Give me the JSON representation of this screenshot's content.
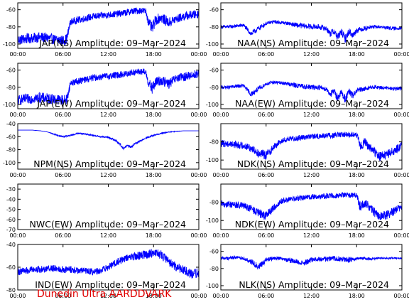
{
  "figure_footer": "Dunedin Ultra AARDDVARK",
  "colors": {
    "trace": "#0000ff",
    "frame": "#000000",
    "footer": "#e00000"
  },
  "chart_data": [
    {
      "type": "line",
      "title": "JAP(NS) Amplitude: 09–Mar–2024",
      "ylim": [
        -105,
        -52
      ],
      "yticks": [
        -100,
        -80,
        -60
      ],
      "ytick_labels": [
        "-100",
        "-80",
        "-60"
      ],
      "xlim": [
        0,
        24
      ],
      "xticks": [
        0,
        6,
        12,
        18,
        24
      ],
      "xtick_labels": [
        "00:00",
        "06:00",
        "12:00",
        "18:00",
        "00:00"
      ],
      "series": [
        {
          "x": [
            0,
            1,
            2,
            3,
            4,
            5,
            6,
            6.5,
            7,
            8,
            9,
            10,
            11,
            12,
            13,
            14,
            15,
            16,
            16.5,
            17,
            17.3,
            17.8,
            18.3,
            19,
            20,
            21,
            22,
            23,
            24
          ],
          "y": [
            -95,
            -94,
            -93,
            -92,
            -93,
            -95,
            -96,
            -94,
            -74,
            -72,
            -70,
            -68,
            -67,
            -66,
            -65,
            -64,
            -62,
            -61,
            -61,
            -62,
            -74,
            -82,
            -72,
            -69,
            -75,
            -71,
            -68,
            -66,
            -65
          ],
          "band": [
            6,
            6,
            6,
            6,
            6,
            6,
            6,
            6,
            4,
            4,
            4,
            4,
            4,
            4,
            4,
            4,
            4,
            4,
            4,
            4,
            5,
            7,
            6,
            6,
            6,
            5,
            5,
            5,
            5
          ]
        }
      ]
    },
    {
      "type": "line",
      "title": "NAA(NS) Amplitude: 09–Mar–2024",
      "ylim": [
        -105,
        -52
      ],
      "yticks": [
        -100,
        -80,
        -60
      ],
      "ytick_labels": [
        "-100",
        "-80",
        "-60"
      ],
      "xlim": [
        0,
        24
      ],
      "xticks": [
        0,
        6,
        12,
        18,
        24
      ],
      "xtick_labels": [
        "00:00",
        "06:00",
        "12:00",
        "18:00",
        "00:00"
      ],
      "series": [
        {
          "x": [
            0,
            1,
            2,
            3,
            4,
            5,
            6,
            7,
            8,
            9,
            10,
            11,
            12,
            13,
            14,
            14.5,
            15,
            15.5,
            16,
            16.5,
            17,
            17.5,
            18,
            19,
            20,
            21,
            22,
            23,
            24
          ],
          "y": [
            -80,
            -80,
            -79,
            -78,
            -88,
            -82,
            -76,
            -74,
            -75,
            -76,
            -78,
            -79,
            -80,
            -80,
            -82,
            -88,
            -85,
            -92,
            -86,
            -94,
            -85,
            -90,
            -84,
            -82,
            -80,
            -80,
            -81,
            -82,
            -81
          ],
          "band": [
            2,
            2,
            2,
            2,
            3,
            3,
            2,
            2,
            2,
            2,
            3,
            3,
            3,
            3,
            3,
            4,
            4,
            5,
            4,
            5,
            4,
            4,
            3,
            3,
            2,
            2,
            2,
            2,
            2
          ]
        }
      ]
    },
    {
      "type": "line",
      "title": "JAP(EW) Amplitude: 09–Mar–2024",
      "ylim": [
        -105,
        -52
      ],
      "yticks": [
        -100,
        -80,
        -60
      ],
      "ytick_labels": [
        "-100",
        "-80",
        "-60"
      ],
      "xlim": [
        0,
        24
      ],
      "xticks": [
        0,
        6,
        12,
        18,
        24
      ],
      "xtick_labels": [
        "00:00",
        "06:00",
        "12:00",
        "18:00",
        "00:00"
      ],
      "series": [
        {
          "x": [
            0,
            1,
            2,
            3,
            4,
            5,
            6,
            6.5,
            7,
            8,
            9,
            10,
            11,
            12,
            13,
            14,
            15,
            16,
            16.5,
            17,
            17.3,
            17.8,
            18.3,
            19,
            20,
            21,
            22,
            23,
            24
          ],
          "y": [
            -95,
            -94,
            -93,
            -92,
            -93,
            -94,
            -95,
            -94,
            -75,
            -73,
            -71,
            -69,
            -68,
            -67,
            -66,
            -65,
            -63,
            -62,
            -62,
            -63,
            -74,
            -82,
            -74,
            -72,
            -76,
            -70,
            -68,
            -66,
            -64
          ],
          "band": [
            6,
            6,
            6,
            6,
            6,
            6,
            6,
            6,
            4,
            4,
            4,
            4,
            4,
            4,
            4,
            4,
            4,
            4,
            4,
            4,
            5,
            7,
            6,
            6,
            6,
            5,
            5,
            5,
            5
          ]
        }
      ]
    },
    {
      "type": "line",
      "title": "NAA(EW) Amplitude: 09–Mar–2024",
      "ylim": [
        -105,
        -52
      ],
      "yticks": [
        -100,
        -80,
        -60
      ],
      "ytick_labels": [
        "-100",
        "-80",
        "-60"
      ],
      "xlim": [
        0,
        24
      ],
      "xticks": [
        0,
        6,
        12,
        18,
        24
      ],
      "xtick_labels": [
        "00:00",
        "06:00",
        "12:00",
        "18:00",
        "00:00"
      ],
      "series": [
        {
          "x": [
            0,
            1,
            2,
            3,
            4,
            5,
            6,
            7,
            8,
            9,
            10,
            11,
            12,
            13,
            14,
            14.5,
            15,
            15.5,
            16,
            16.5,
            17,
            17.5,
            18,
            19,
            20,
            21,
            22,
            23,
            24
          ],
          "y": [
            -80,
            -80,
            -79,
            -78,
            -88,
            -82,
            -76,
            -74,
            -75,
            -76,
            -78,
            -79,
            -80,
            -80,
            -82,
            -88,
            -85,
            -92,
            -86,
            -94,
            -85,
            -90,
            -84,
            -82,
            -80,
            -80,
            -81,
            -82,
            -81
          ],
          "band": [
            2,
            2,
            2,
            2,
            3,
            3,
            2,
            2,
            2,
            2,
            3,
            3,
            3,
            3,
            3,
            4,
            4,
            5,
            4,
            5,
            4,
            4,
            3,
            3,
            2,
            2,
            2,
            2,
            2
          ]
        }
      ]
    },
    {
      "type": "line",
      "title": "NPM(NS) Amplitude: 09–Mar–2024",
      "ylim": [
        -110,
        -40
      ],
      "yticks": [
        -100,
        -80,
        -60,
        -40
      ],
      "ytick_labels": [
        "-100",
        "-80",
        "-60",
        "-40"
      ],
      "xlim": [
        0,
        24
      ],
      "xticks": [
        0,
        6,
        12,
        18,
        24
      ],
      "xtick_labels": [
        "00:00",
        "06:00",
        "12:00",
        "18:00",
        "00:00"
      ],
      "series": [
        {
          "x": [
            0,
            2,
            3,
            4,
            5,
            6,
            7,
            8,
            9,
            10,
            11,
            12,
            13,
            13.5,
            14,
            14.5,
            15,
            15.5,
            16,
            17,
            18,
            19,
            20,
            21,
            22,
            24
          ],
          "y": [
            -50,
            -50,
            -51,
            -53,
            -57,
            -60,
            -58,
            -55,
            -56,
            -58,
            -60,
            -61,
            -66,
            -71,
            -78,
            -74,
            -76,
            -71,
            -68,
            -62,
            -58,
            -55,
            -53,
            -52,
            -51,
            -51
          ],
          "band": [
            0,
            0,
            0,
            0,
            1,
            1,
            1,
            1,
            1,
            1,
            1,
            1,
            1.5,
            2,
            2,
            2,
            2,
            1.5,
            1.5,
            1,
            1,
            1,
            0.5,
            0.5,
            0,
            0
          ]
        }
      ]
    },
    {
      "type": "line",
      "title": "NDK(NS) Amplitude: 09–Mar–2024",
      "ylim": [
        -110,
        -60
      ],
      "yticks": [
        -100,
        -80
      ],
      "ytick_labels": [
        "-100",
        "-80"
      ],
      "xlim": [
        0,
        24
      ],
      "xticks": [
        0,
        6,
        12,
        18,
        24
      ],
      "xtick_labels": [
        "00:00",
        "06:00",
        "12:00",
        "18:00",
        "00:00"
      ],
      "series": [
        {
          "x": [
            0,
            1,
            2,
            3,
            4,
            5,
            6,
            7,
            8,
            9,
            10,
            11,
            12,
            13,
            14,
            15,
            16,
            17,
            18,
            18.5,
            19,
            20,
            21,
            22,
            23,
            24
          ],
          "y": [
            -82,
            -82,
            -83,
            -84,
            -87,
            -92,
            -95,
            -86,
            -79,
            -77,
            -76,
            -75,
            -74,
            -74,
            -73,
            -73,
            -72,
            -72,
            -72,
            -86,
            -80,
            -88,
            -96,
            -94,
            -90,
            -84
          ],
          "band": [
            4,
            4,
            4,
            4,
            4,
            5,
            5,
            4,
            3,
            3,
            3,
            3,
            3,
            3,
            3,
            3,
            3,
            3,
            3,
            6,
            5,
            5,
            5,
            5,
            5,
            4
          ]
        }
      ]
    },
    {
      "type": "line",
      "title": "NWC(EW) Amplitude: 09–Mar–2024",
      "ylim": [
        -70,
        -25
      ],
      "yticks": [
        -70,
        -60,
        -50,
        -40,
        -30
      ],
      "ytick_labels": [
        "-70",
        "-60",
        "-50",
        "-40",
        "-30"
      ],
      "xlim": [
        0,
        24
      ],
      "xticks": [
        0,
        6,
        12,
        18,
        24
      ],
      "xtick_labels": [
        "00:00",
        "06:00",
        "12:00",
        "18:00",
        "00:00"
      ],
      "series": []
    },
    {
      "type": "line",
      "title": "NDK(EW) Amplitude: 09–Mar–2024",
      "ylim": [
        -110,
        -60
      ],
      "yticks": [
        -100,
        -80
      ],
      "ytick_labels": [
        "-100",
        "-80"
      ],
      "xlim": [
        0,
        24
      ],
      "xticks": [
        0,
        6,
        12,
        18,
        24
      ],
      "xtick_labels": [
        "00:00",
        "06:00",
        "12:00",
        "18:00",
        "00:00"
      ],
      "series": [
        {
          "x": [
            0,
            1,
            2,
            3,
            4,
            5,
            6,
            7,
            8,
            9,
            10,
            11,
            12,
            13,
            14,
            15,
            16,
            17,
            18,
            18.5,
            19,
            20,
            21,
            22,
            23,
            24
          ],
          "y": [
            -82,
            -82,
            -83,
            -84,
            -87,
            -92,
            -95,
            -86,
            -79,
            -77,
            -76,
            -75,
            -74,
            -74,
            -73,
            -73,
            -72,
            -72,
            -72,
            -86,
            -80,
            -88,
            -96,
            -94,
            -90,
            -84
          ],
          "band": [
            4,
            4,
            4,
            4,
            4,
            5,
            5,
            4,
            3,
            3,
            3,
            3,
            3,
            3,
            3,
            3,
            3,
            3,
            3,
            6,
            5,
            5,
            5,
            5,
            5,
            4
          ]
        }
      ]
    },
    {
      "type": "line",
      "title": "IND(EW) Amplitude: 09–Mar–2024",
      "ylim": [
        -80,
        -40
      ],
      "yticks": [
        -80,
        -60,
        -40
      ],
      "ytick_labels": [
        "-80",
        "-60",
        "-40"
      ],
      "xlim": [
        0,
        24
      ],
      "xticks": [
        0,
        6,
        12,
        18,
        24
      ],
      "xtick_labels": [
        "00:00",
        "06:00",
        "12:00",
        "18:00",
        "00:00"
      ],
      "series": [
        {
          "x": [
            0,
            1,
            2,
            3,
            4,
            5,
            6,
            7,
            8,
            9,
            10,
            11,
            12,
            13,
            14,
            15,
            16,
            17,
            18,
            19,
            20,
            21,
            22,
            23,
            24
          ],
          "y": [
            -64,
            -63,
            -62,
            -62,
            -61,
            -61,
            -62,
            -62,
            -63,
            -63,
            -64,
            -63,
            -60,
            -56,
            -53,
            -51,
            -50,
            -49,
            -47,
            -49,
            -55,
            -60,
            -62,
            -66,
            -65
          ],
          "band": [
            3,
            3,
            3,
            3,
            3,
            3,
            3,
            3,
            3,
            3,
            3,
            3,
            3,
            3,
            3,
            3,
            4,
            4,
            4,
            4,
            4,
            4,
            4,
            4,
            4
          ]
        }
      ]
    },
    {
      "type": "line",
      "title": "NLK(NS) Amplitude: 09–Mar–2024",
      "ylim": [
        -105,
        -52
      ],
      "yticks": [
        -100,
        -80,
        -60
      ],
      "ytick_labels": [
        "-100",
        "-80",
        "-60"
      ],
      "xlim": [
        0,
        24
      ],
      "xticks": [
        0,
        6,
        12,
        18,
        24
      ],
      "xtick_labels": [
        "00:00",
        "06:00",
        "12:00",
        "18:00",
        "00:00"
      ],
      "series": [
        {
          "x": [
            0,
            1,
            2,
            3,
            4,
            5,
            6,
            7,
            8,
            9,
            10,
            11,
            12,
            13,
            14,
            15,
            16,
            17,
            18,
            19,
            20,
            21,
            22,
            23,
            24
          ],
          "y": [
            -68,
            -68,
            -67,
            -68,
            -72,
            -78,
            -70,
            -68,
            -68,
            -70,
            -72,
            -74,
            -70,
            -69,
            -69,
            -68,
            -69,
            -70,
            -69,
            -68,
            -69,
            -68,
            -68,
            -68,
            -68
          ],
          "band": [
            2,
            2,
            2,
            2,
            3,
            4,
            3,
            2,
            2,
            3,
            3,
            3,
            3,
            3,
            3,
            3,
            3,
            3,
            2,
            2,
            1.5,
            1,
            1,
            1,
            1
          ]
        }
      ]
    }
  ]
}
